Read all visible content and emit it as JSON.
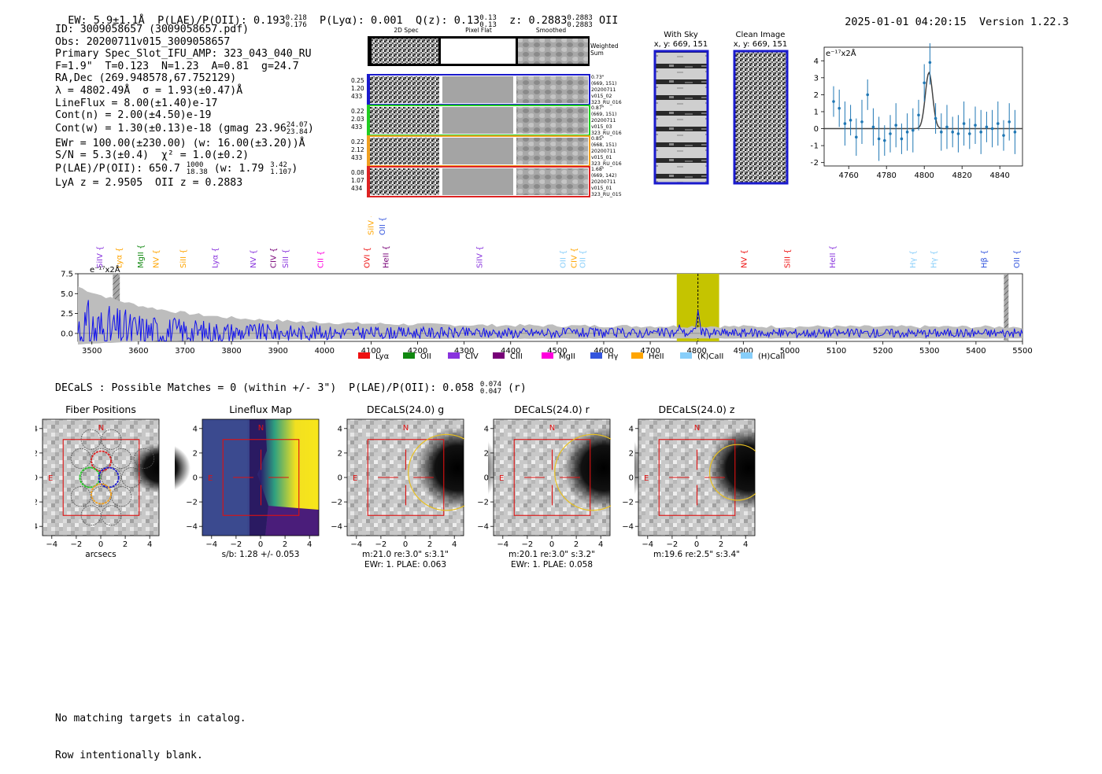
{
  "header": {
    "ew": "EW: 5.9±1.1Å",
    "plae_label": "P(LAE)/P(OII): 0.193",
    "plae_sup": "0.218",
    "plae_sub": "0.176",
    "plya": "P(Lyα): 0.001",
    "qz_label": "Q(z): 0.13",
    "qz_sup": "0.13",
    "qz_sub": "0.13",
    "z_label": "z: 0.2883",
    "z_sup": "0.2883",
    "z_sub": "0.2883",
    "z_line": "OII",
    "timestamp": "2025-01-01 04:20:15",
    "version": "Version 1.22.3"
  },
  "info": {
    "id": "ID: 3009058657 (3009058657.pdf)",
    "obs": "Obs: 20200711v015_3009058657",
    "primary": "Primary Spec_Slot_IFU_AMP: 323_043_040_RU",
    "fiber": "F=1.9\"  T=0.123  N=1.23  A=0.81  g=24.7",
    "radec": "RA,Dec (269.948578,67.752129)",
    "lambda": "λ = 4802.49Å  σ = 1.93(±0.47)Å",
    "lineflux": "LineFlux = 8.00(±1.40)e-17",
    "contn": "Cont(n) = 2.00(±4.50)e-19",
    "contw_a": "Cont(w) = 1.30(±0.13)e-18 (gmag 23.96",
    "contw_sup": "24.07",
    "contw_sub": "23.84",
    "contw_b": ")",
    "ewr": "EWr = 100.00(±230.00) (w: 16.00(±3.20))Å",
    "sn": "S/N = 5.3(±0.4)  χ² = 1.0(±0.2)",
    "plae_a": "P(LAE)/P(OII): 650.7",
    "plae_a_sup": "1000",
    "plae_a_sub": "18.38",
    "plae_b": "(w: 1.79",
    "plae_b_sup": "3.42",
    "plae_b_sub": "1.107",
    "plae_c": ")",
    "zline": "LyA z = 2.9505  OII z = 0.2883"
  },
  "cutouts": {
    "col_2d": "2D Spec",
    "col_flat": "Pixel Flat",
    "col_smooth": "Smoothed",
    "weighted": "Weighted",
    "sum": "Sum",
    "rows": [
      {
        "color": "#1a1acc",
        "left": [
          "0.25",
          "1.20",
          "433"
        ],
        "right": [
          "0.73\"",
          "(669, 151)",
          "20200711",
          "v015_02",
          "323_RU_016"
        ]
      },
      {
        "color": "#22cc22",
        "left": [
          "0.22",
          "2.03",
          "433"
        ],
        "right": [
          "0.87\"",
          "(669, 151)",
          "20200711",
          "v015_03",
          "323_RU_016"
        ]
      },
      {
        "color": "#f0a020",
        "left": [
          "0.22",
          "2.12",
          "433"
        ],
        "right": [
          "0.85\"",
          "(668, 151)",
          "20200711",
          "v015_01",
          "323_RU_016"
        ]
      },
      {
        "color": "#dd2222",
        "left": [
          "0.08",
          "1.07",
          "434"
        ],
        "right": [
          "1.68\"",
          "(669, 142)",
          "20200711",
          "v015_01",
          "323_RU_015"
        ]
      }
    ]
  },
  "sky": {
    "with_sky_title": "With Sky",
    "with_sky_coords": "x, y: 669, 151",
    "clean_title": "Clean Image",
    "clean_coords": "x, y: 669, 151"
  },
  "line_fit": {
    "unit": "e⁻¹⁷x2Å",
    "xticks": [
      "4760",
      "4780",
      "4800",
      "4820",
      "4840"
    ],
    "yticks": [
      "4",
      "3",
      "2",
      "1",
      "0",
      "−1",
      "−2"
    ]
  },
  "chart_data": [
    {
      "type": "scatter",
      "name": "line-fit",
      "x": [
        4752,
        4755,
        4758,
        4761,
        4764,
        4767,
        4770,
        4773,
        4776,
        4779,
        4782,
        4785,
        4788,
        4791,
        4794,
        4797,
        4800,
        4803,
        4806,
        4809,
        4812,
        4815,
        4818,
        4821,
        4824,
        4827,
        4830,
        4833,
        4836,
        4839,
        4842,
        4845,
        4848
      ],
      "y": [
        1.6,
        1.2,
        0.3,
        0.5,
        -0.5,
        0.4,
        2.0,
        0.1,
        -0.6,
        -0.7,
        -0.3,
        0.2,
        -0.6,
        -0.2,
        -0.1,
        0.8,
        2.7,
        3.9,
        0.6,
        -0.2,
        0.1,
        -0.2,
        -0.3,
        0.3,
        -0.3,
        0.2,
        -0.2,
        0.1,
        0.0,
        0.3,
        -0.4,
        0.4,
        -0.2
      ],
      "fit_center": 4802.49,
      "fit_sigma": 1.93,
      "fit_amplitude": 3.3,
      "xlim": [
        4747,
        4852
      ],
      "ylim": [
        -2.2,
        4.8
      ]
    },
    {
      "type": "line",
      "name": "full-spectrum",
      "unit": "e⁻¹⁷x2Å",
      "xlim": [
        3470,
        5500
      ],
      "ylim": [
        -1.0,
        7.5
      ],
      "xticks": [
        "3500",
        "3600",
        "3700",
        "3800",
        "3900",
        "4000",
        "4100",
        "4200",
        "4300",
        "4400",
        "4500",
        "4600",
        "4700",
        "4800",
        "4900",
        "5000",
        "5100",
        "5200",
        "5300",
        "5400",
        "5500"
      ],
      "yticks": [
        "7.5",
        "5.0",
        "2.5",
        "0.0"
      ],
      "highlight_range": [
        4757,
        4848
      ],
      "line_marker": 4802.49,
      "legend": [
        {
          "label": "Lyα",
          "color": "#ee1111"
        },
        {
          "label": "OII",
          "color": "#118811"
        },
        {
          "label": "CIV",
          "color": "#8833dd"
        },
        {
          "label": "CIII",
          "color": "#770077"
        },
        {
          "label": "MgII",
          "color": "#ff00dd"
        },
        {
          "label": "Hγ",
          "color": "#3355dd"
        },
        {
          "label": "HeII",
          "color": "#ffa500"
        },
        {
          "label": "(K)CaII",
          "color": "#87cefa"
        },
        {
          "label": "(H)CaII",
          "color": "#87cefa"
        }
      ],
      "line_labels_upper": [
        {
          "label": "SiIV",
          "x": 4100,
          "color": "#ffa500"
        },
        {
          "label": "OII",
          "x": 4125,
          "color": "#3355dd"
        }
      ],
      "line_labels": [
        {
          "label": "SiIV",
          "x": 3517,
          "color": "#8833dd"
        },
        {
          "label": "Lyα",
          "x": 3559,
          "color": "#ffa500"
        },
        {
          "label": "MgII",
          "x": 3605,
          "color": "#118811"
        },
        {
          "label": "NV",
          "x": 3638,
          "color": "#ffa500"
        },
        {
          "label": "SiII",
          "x": 3697,
          "color": "#ffa500"
        },
        {
          "label": "Lyα",
          "x": 3765,
          "color": "#8833dd"
        },
        {
          "label": "NV",
          "x": 3847,
          "color": "#8833dd"
        },
        {
          "label": "CIV",
          "x": 3890,
          "color": "#770077"
        },
        {
          "label": "SiII",
          "x": 3917,
          "color": "#8833dd"
        },
        {
          "label": "CII",
          "x": 3992,
          "color": "#ff00dd"
        },
        {
          "label": "OVI",
          "x": 4092,
          "color": "#ee1111"
        },
        {
          "label": "HeII",
          "x": 4132,
          "color": "#770077"
        },
        {
          "label": "SiIV",
          "x": 4334,
          "color": "#8833dd"
        },
        {
          "label": "OII",
          "x": 4513,
          "color": "#87cefa"
        },
        {
          "label": "CIV",
          "x": 4537,
          "color": "#ffa500"
        },
        {
          "label": "OII",
          "x": 4555,
          "color": "#87cefa"
        },
        {
          "label": "NV",
          "x": 4902,
          "color": "#ee1111"
        },
        {
          "label": "SiII",
          "x": 4995,
          "color": "#ee1111"
        },
        {
          "label": "HeII",
          "x": 5092,
          "color": "#8833dd"
        },
        {
          "label": "Hγ",
          "x": 5265,
          "color": "#87cefa"
        },
        {
          "label": "Hγ",
          "x": 5310,
          "color": "#87cefa"
        },
        {
          "label": "Hβ",
          "x": 5418,
          "color": "#3355dd"
        },
        {
          "label": "OII",
          "x": 5488,
          "color": "#3355dd"
        }
      ]
    }
  ],
  "decals": {
    "title": "DECaLS : Possible Matches = 0 (within +/- 3\")  P(LAE)/P(OII): 0.058",
    "title_sup": "0.074",
    "title_sub": "0.047",
    "title_end": "(r)",
    "panels": [
      {
        "title": "Fiber Positions",
        "caption1": "arcsecs",
        "caption2": ""
      },
      {
        "title": "Lineflux Map",
        "caption1": "s/b: 1.28 +/- 0.053",
        "caption2": ""
      },
      {
        "title": "DECaLS(24.0) g",
        "caption1": "m:21.0  re:3.0\"  s:3.1\"",
        "caption2": "EWr: 1. PLAE: 0.063"
      },
      {
        "title": "DECaLS(24.0) r",
        "caption1": "m:20.1  re:3.0\"  s:3.2\"",
        "caption2": "EWr: 1. PLAE: 0.058"
      },
      {
        "title": "DECaLS(24.0) z",
        "caption1": "m:19.6  re:2.5\"  s:3.4\"",
        "caption2": ""
      }
    ],
    "ticks_x": [
      "−4",
      "−2",
      "0",
      "2",
      "4"
    ],
    "ticks_y": [
      "4",
      "2",
      "0",
      "−2",
      "−4"
    ],
    "north": "N",
    "east": "E"
  },
  "footer": {
    "line1": "No matching targets in catalog.",
    "line2": "Row intentionally blank."
  }
}
